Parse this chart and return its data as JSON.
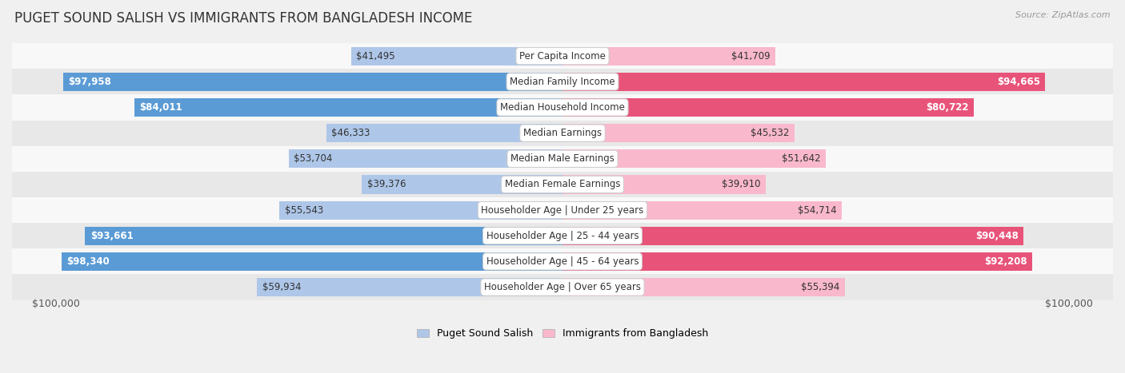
{
  "title": "PUGET SOUND SALISH VS IMMIGRANTS FROM BANGLADESH INCOME",
  "source": "Source: ZipAtlas.com",
  "categories": [
    "Per Capita Income",
    "Median Family Income",
    "Median Household Income",
    "Median Earnings",
    "Median Male Earnings",
    "Median Female Earnings",
    "Householder Age | Under 25 years",
    "Householder Age | 25 - 44 years",
    "Householder Age | 45 - 64 years",
    "Householder Age | Over 65 years"
  ],
  "left_values": [
    41495,
    97958,
    84011,
    46333,
    53704,
    39376,
    55543,
    93661,
    98340,
    59934
  ],
  "right_values": [
    41709,
    94665,
    80722,
    45532,
    51642,
    39910,
    54714,
    90448,
    92208,
    55394
  ],
  "left_labels": [
    "$41,495",
    "$97,958",
    "$84,011",
    "$46,333",
    "$53,704",
    "$39,376",
    "$55,543",
    "$93,661",
    "$98,340",
    "$59,934"
  ],
  "right_labels": [
    "$41,709",
    "$94,665",
    "$80,722",
    "$45,532",
    "$51,642",
    "$39,910",
    "$54,714",
    "$90,448",
    "$92,208",
    "$55,394"
  ],
  "max_value": 100000,
  "left_color_light": "#aec6e8",
  "left_color_dark": "#5b9bd5",
  "right_color_light": "#f9b8cc",
  "right_color_dark": "#e8537a",
  "left_legend": "Puget Sound Salish",
  "right_legend": "Immigrants from Bangladesh",
  "bg_color": "#f0f0f0",
  "row_bg_light": "#f8f8f8",
  "row_bg_dark": "#e8e8e8",
  "title_fontsize": 12,
  "label_fontsize": 8.5,
  "category_fontsize": 8.5,
  "xlabel_left": "$100,000",
  "xlabel_right": "$100,000",
  "label_threshold": 60000,
  "inside_label_color": "white",
  "outside_label_color": "#444444"
}
